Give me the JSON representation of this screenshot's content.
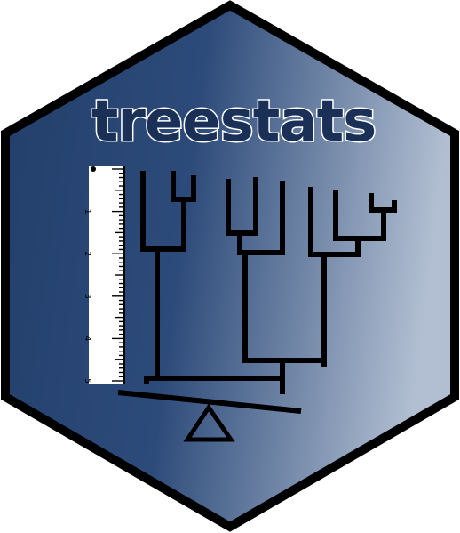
{
  "logo": {
    "title": "treestats",
    "ruler_labels": [
      "0",
      "1",
      "2",
      "3",
      "4",
      "5"
    ],
    "colors": {
      "gradient_start": "#223f6b",
      "gradient_mid": "#2b4a79",
      "gradient_end": "#aebbd0",
      "border": "#000000",
      "title_fill": "#1a3057",
      "title_outline": "#ffffff",
      "lines": "#000000",
      "ruler_fill": "#ffffff"
    },
    "icons": [
      "phylogenetic-tree-icon",
      "ruler-icon",
      "balance-scale-icon"
    ]
  }
}
